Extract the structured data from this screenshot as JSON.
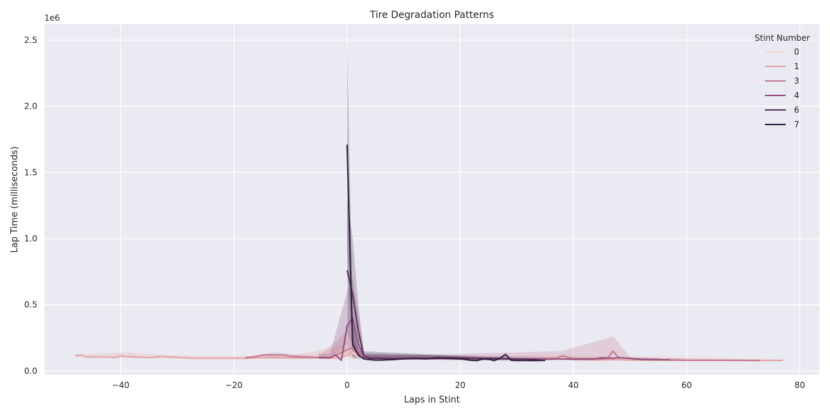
{
  "chart_data": {
    "type": "line",
    "title": "Tire Degradation Patterns",
    "xlabel": "Laps in Stint",
    "ylabel": "Lap Time (milliseconds)",
    "y_offset_label": "1e6",
    "xlim": [
      -53.5,
      83.5
    ],
    "ylim": [
      -30000,
      2620000
    ],
    "xticks": [
      -40,
      -20,
      0,
      20,
      40,
      60,
      80
    ],
    "xtick_labels": [
      "−40",
      "−20",
      "0",
      "20",
      "40",
      "60",
      "80"
    ],
    "yticks": [
      0,
      500000,
      1000000,
      1500000,
      2000000,
      2500000
    ],
    "ytick_labels": [
      "0.0",
      "0.5",
      "1.0",
      "1.5",
      "2.0",
      "2.5"
    ],
    "grid": true,
    "background": "#eaeaf2",
    "legend": {
      "title": "Stint Number",
      "placement": "top-right",
      "entries": [
        {
          "label": "0",
          "color": "#f1d9d3"
        },
        {
          "label": "1",
          "color": "#e4a3a3"
        },
        {
          "label": "3",
          "color": "#c2778f"
        },
        {
          "label": "4",
          "color": "#93507f"
        },
        {
          "label": "6",
          "color": "#573259"
        },
        {
          "label": "7",
          "color": "#2d1e3e"
        }
      ]
    },
    "series": [
      {
        "name": "0",
        "color": "#f1d9d3",
        "x": [
          -10,
          -6,
          -2,
          0,
          1,
          2,
          3,
          5,
          8,
          12,
          16,
          20,
          25,
          30,
          35,
          38,
          40,
          45,
          47,
          50,
          55,
          56,
          57,
          60,
          65,
          70,
          75,
          77
        ],
        "y": [
          105000,
          100000,
          100000,
          130000,
          140000,
          100000,
          95000,
          92000,
          92000,
          92000,
          92000,
          91000,
          90000,
          90000,
          90000,
          100000,
          85000,
          85000,
          90000,
          85000,
          82000,
          95000,
          80000,
          80000,
          80000,
          80000,
          78000,
          80000
        ],
        "band": [
          [
            -10,
            95000,
            115000
          ],
          [
            0,
            100000,
            170000
          ],
          [
            2,
            90000,
            110000
          ],
          [
            20,
            85000,
            97000
          ],
          [
            38,
            85000,
            130000
          ],
          [
            47,
            80000,
            105000
          ],
          [
            56,
            78000,
            125000
          ],
          [
            77,
            75000,
            85000
          ]
        ]
      },
      {
        "name": "1",
        "color": "#e4a3a3",
        "x": [
          -48,
          -47,
          -46,
          -44,
          -42,
          -41,
          -40,
          -39,
          -37,
          -35,
          -33,
          -31,
          -29,
          -27,
          -25,
          -23,
          -20,
          -18,
          -15,
          -12,
          -10,
          -8,
          -5,
          -2,
          0,
          1,
          2,
          3,
          4,
          6,
          8,
          12,
          16,
          20,
          24,
          28,
          32,
          36,
          38,
          40,
          44,
          47,
          50,
          55,
          60,
          65,
          70,
          75,
          77
        ],
        "y": [
          115000,
          120000,
          105000,
          105000,
          105000,
          100000,
          115000,
          110000,
          105000,
          100000,
          110000,
          105000,
          100000,
          95000,
          95000,
          95000,
          95000,
          95000,
          100000,
          100000,
          98000,
          98000,
          98000,
          95000,
          120000,
          150000,
          120000,
          100000,
          95000,
          95000,
          92000,
          90000,
          90000,
          88000,
          88000,
          88000,
          86000,
          85000,
          95000,
          85000,
          82000,
          85000,
          82000,
          80000,
          80000,
          80000,
          79000,
          78000,
          80000
        ],
        "band": [
          [
            -48,
            105000,
            125000
          ],
          [
            -39,
            95000,
            140000
          ],
          [
            -30,
            95000,
            115000
          ],
          [
            -10,
            90000,
            110000
          ],
          [
            0,
            100000,
            200000
          ],
          [
            3,
            90000,
            110000
          ],
          [
            38,
            85000,
            110000
          ],
          [
            77,
            75000,
            85000
          ]
        ]
      },
      {
        "name": "3",
        "color": "#c2778f",
        "x": [
          -18,
          -16,
          -15,
          -13,
          -11,
          -10,
          -8,
          -5,
          -3,
          0,
          1,
          2,
          3,
          5,
          8,
          12,
          16,
          20,
          24,
          28,
          32,
          35,
          37,
          38,
          40,
          43,
          45,
          46,
          47,
          48,
          50,
          52,
          55,
          60,
          65,
          70,
          73
        ],
        "y": [
          100000,
          110000,
          120000,
          120000,
          120000,
          110000,
          105000,
          102000,
          100000,
          160000,
          175000,
          150000,
          100000,
          95000,
          92000,
          92000,
          92000,
          90000,
          90000,
          90000,
          88000,
          88000,
          95000,
          115000,
          90000,
          88000,
          90000,
          95000,
          150000,
          100000,
          95000,
          85000,
          85000,
          80000,
          80000,
          80000,
          78000
        ],
        "band": [
          [
            -18,
            95000,
            105000
          ],
          [
            -13,
            100000,
            140000
          ],
          [
            -5,
            95000,
            110000
          ],
          [
            0,
            120000,
            300000
          ],
          [
            3,
            90000,
            110000
          ],
          [
            38,
            90000,
            150000
          ],
          [
            47,
            90000,
            260000
          ],
          [
            50,
            85000,
            105000
          ],
          [
            73,
            75000,
            82000
          ]
        ]
      },
      {
        "name": "4",
        "color": "#93507f",
        "x": [
          -5,
          -3,
          -2,
          -1,
          0,
          1,
          2,
          3,
          5,
          8,
          12,
          16,
          20,
          24,
          28,
          32,
          36,
          40,
          44,
          45,
          47,
          48,
          52,
          56,
          57
        ],
        "y": [
          100000,
          100000,
          120000,
          80000,
          340000,
          400000,
          200000,
          110000,
          100000,
          95000,
          95000,
          95000,
          92000,
          92000,
          90000,
          90000,
          90000,
          88000,
          92000,
          100000,
          95000,
          100000,
          88000,
          85000,
          85000
        ],
        "band": [
          [
            -3,
            90000,
            130000
          ],
          [
            0,
            200000,
            600000
          ],
          [
            1,
            150000,
            700000
          ],
          [
            3,
            95000,
            130000
          ],
          [
            44,
            85000,
            100000
          ],
          [
            57,
            80000,
            90000
          ]
        ]
      },
      {
        "name": "6",
        "color": "#573259",
        "x": [
          0,
          1,
          2,
          3,
          4,
          6,
          8,
          12,
          16,
          18,
          20,
          22,
          24,
          26,
          28,
          30,
          32,
          34
        ],
        "y": [
          760000,
          580000,
          300000,
          110000,
          95000,
          95000,
          92000,
          95000,
          95000,
          100000,
          98000,
          95000,
          93000,
          95000,
          93000,
          90000,
          88000,
          85000
        ],
        "band": [
          [
            0,
            300000,
            1300000
          ],
          [
            1,
            200000,
            1000000
          ],
          [
            2,
            100000,
            500000
          ],
          [
            3,
            95000,
            130000
          ],
          [
            34,
            80000,
            90000
          ]
        ]
      },
      {
        "name": "7",
        "color": "#2d1e3e",
        "x": [
          0,
          1,
          2,
          3,
          4,
          5,
          6,
          8,
          10,
          12,
          14,
          16,
          18,
          20,
          22,
          23,
          24,
          25,
          26,
          27,
          28,
          29,
          30,
          32,
          34,
          35
        ],
        "y": [
          1710000,
          200000,
          120000,
          90000,
          85000,
          82000,
          82000,
          85000,
          92000,
          95000,
          92000,
          100000,
          95000,
          92000,
          80000,
          78000,
          90000,
          88000,
          78000,
          95000,
          125000,
          80000,
          78000,
          78000,
          78000,
          80000
        ],
        "band": [
          [
            0,
            900000,
            2500000
          ],
          [
            1,
            100000,
            400000
          ],
          [
            2,
            90000,
            150000
          ],
          [
            35,
            75000,
            85000
          ]
        ]
      }
    ]
  }
}
